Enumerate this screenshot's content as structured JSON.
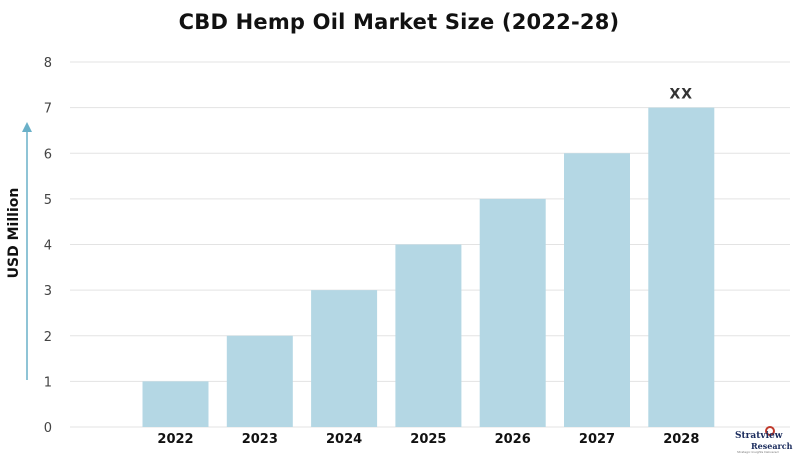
{
  "chart_data": {
    "type": "bar",
    "title": "CBD Hemp Oil Market Size (2022-28)",
    "xlabel": "",
    "ylabel": "USD Million",
    "categories": [
      "2022",
      "2023",
      "2024",
      "2025",
      "2026",
      "2027",
      "2028"
    ],
    "values": [
      1,
      2,
      3,
      4,
      5,
      6,
      7
    ],
    "yticks": [
      "0",
      "1",
      "2",
      "3",
      "4",
      "5",
      "6",
      "7",
      "8"
    ],
    "ylim": [
      0,
      8
    ],
    "grid": true,
    "data_labels": [
      {
        "category": "2028",
        "text": "XX"
      }
    ],
    "bar_color": "#b4d7e4",
    "grid_color": "#e3e3e3",
    "axis_arrow_color": "#6ab0c8"
  },
  "logo": {
    "main": "Stratview",
    "sub": "Research",
    "tagline": "Strategic Insights Delivered"
  }
}
